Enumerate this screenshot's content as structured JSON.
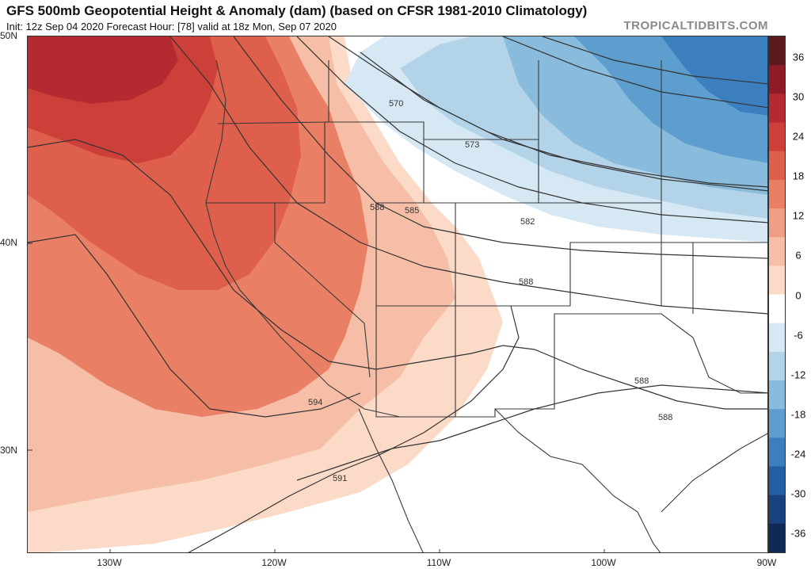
{
  "header": {
    "title": "GFS 500mb Geopotential Height & Anomaly (dam) (based on CFSR 1981-2010 Climatology)",
    "subtitle": "Init: 12z Sep 04 2020   Forecast Hour: [78]   valid at 18z Mon, Sep 07 2020",
    "credit": "TROPICALTIDBITS.COM"
  },
  "axes": {
    "lat_labels": [
      "50N",
      "40N",
      "30N"
    ],
    "lon_labels": [
      "130W",
      "120W",
      "110W",
      "100W",
      "90W"
    ]
  },
  "colorbar": {
    "ticks": [
      "36",
      "30",
      "24",
      "18",
      "12",
      "6",
      "0",
      "-6",
      "-12",
      "-18",
      "-24",
      "-30",
      "-36"
    ],
    "colors": [
      "#5c1a1f",
      "#8e1c26",
      "#b52a30",
      "#cd4039",
      "#dd5f4c",
      "#e97f64",
      "#f09e83",
      "#f6bea6",
      "#fbdac8",
      "#ffffff",
      "#d6e8f3",
      "#b3d3e8",
      "#89bbdc",
      "#5e9ecf",
      "#3b7fbf",
      "#245fa3",
      "#17427f",
      "#0f2a57"
    ]
  },
  "contours": {
    "labels": [
      "570",
      "573",
      "582",
      "585",
      "588",
      "588",
      "588",
      "588",
      "591",
      "594"
    ]
  },
  "colors": {
    "warm_strong": "#cd4039",
    "warm_mid": "#e97f64",
    "warm_light": "#f6bea6",
    "warm_pale": "#fbdac8",
    "cool_light": "#b3d3e8",
    "cool_mid": "#5e9ecf",
    "cool_strong": "#245fa3"
  }
}
